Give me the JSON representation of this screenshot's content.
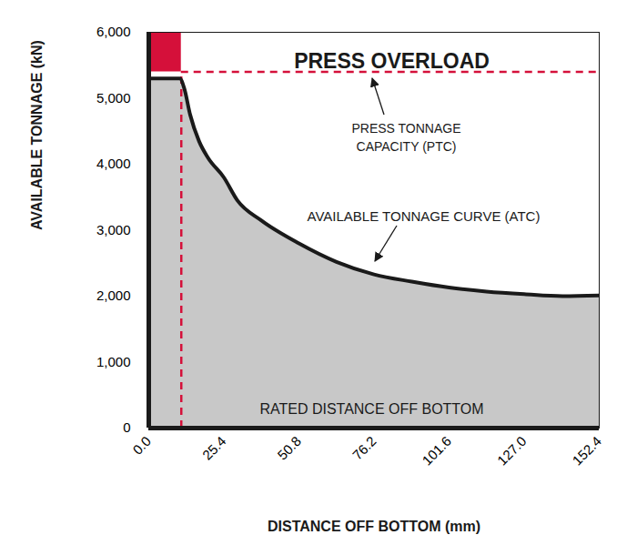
{
  "chart_data": {
    "type": "area",
    "x_label": "DISTANCE OFF BOTTOM (mm)",
    "y_label": "AVAILABLE TONNAGE (kN)",
    "x": [
      0,
      10.5,
      12,
      14,
      17,
      20,
      25.4,
      30,
      38,
      50.8,
      63.5,
      76.2,
      89,
      101.6,
      114.3,
      127,
      140,
      152.4
    ],
    "values": [
      5300,
      5300,
      5150,
      4750,
      4350,
      4100,
      3800,
      3450,
      3150,
      2800,
      2520,
      2330,
      2220,
      2130,
      2070,
      2030,
      2000,
      2010
    ],
    "color": "#c8c8c8",
    "xlim": [
      0,
      152.4
    ],
    "xticks": [
      {
        "value": 0,
        "label": "0.0"
      },
      25.4,
      50.8,
      76.2,
      101.6,
      {
        "value": 127,
        "label": "127.0"
      },
      152.4
    ],
    "ylim": [
      0,
      6000
    ],
    "yticks": [
      0,
      {
        "value": 1000,
        "label": "1,000"
      },
      {
        "value": 2000,
        "label": "2,000"
      },
      {
        "value": 3000,
        "label": "3,000"
      },
      {
        "value": 4000,
        "label": "4,000"
      },
      {
        "value": 5000,
        "label": "5,000"
      },
      {
        "value": 6000,
        "label": "6,000"
      }
    ],
    "grid": false,
    "annotations": [
      {
        "text": "PRESS OVERLOAD"
      },
      {
        "text": "PRESS TONNAGE\nCAPACITY (PTC)",
        "y": 5400
      },
      {
        "text": "AVAILABLE TONNAGE CURVE (ATC)"
      },
      {
        "text": "RATED DISTANCE OFF BOTTOM",
        "x": 11
      }
    ]
  }
}
